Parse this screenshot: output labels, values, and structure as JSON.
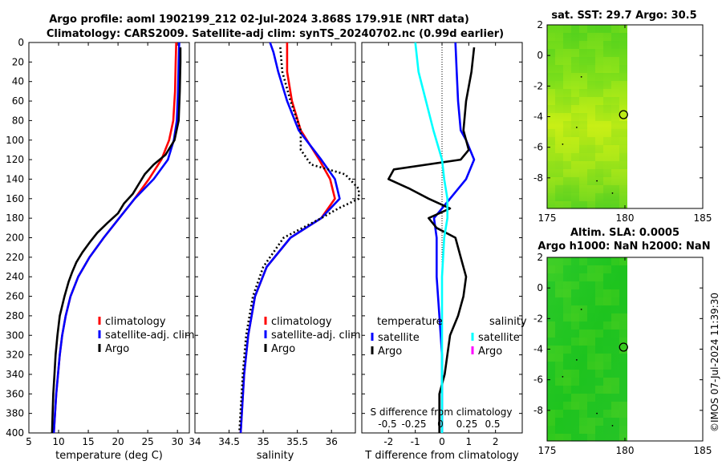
{
  "header": {
    "title_line1": "Argo profile: aoml 1902199_212 02-Jul-2024 3.868S 179.91E (NRT data)",
    "title_line2": "Climatology: CARS2009. Satellite-adj clim: synTS_20240702.nc (0.99d earlier)",
    "sst_title": "sat. SST: 29.7 Argo: 30.5",
    "sla_title1": "Altim. SLA: 0.0005",
    "sla_title2": "Argo h1000: NaN h2000: NaN",
    "footer": "©IMOS 07-Jul-2024 11:39:30"
  },
  "colors": {
    "climatology": "#ff0000",
    "satellite": "#0000ff",
    "argo": "#000000",
    "sal_satellite": "#00ffff",
    "sal_argo": "#ff00ff"
  },
  "chart_data": [
    {
      "type": "line",
      "panel": "temperature",
      "xlabel": "temperature (deg C)",
      "ylim": [
        400,
        0
      ],
      "xlim": [
        5,
        32
      ],
      "xticks": [
        "5",
        "10",
        "15",
        "20",
        "25",
        "30"
      ],
      "xtick_values": [
        5,
        10,
        15,
        20,
        25,
        30
      ],
      "yticks": [
        "0",
        "20",
        "40",
        "60",
        "80",
        "100",
        "120",
        "140",
        "160",
        "180",
        "200",
        "220",
        "240",
        "260",
        "280",
        "300",
        "320",
        "340",
        "360",
        "380",
        "400"
      ],
      "ytick_values": [
        0,
        20,
        40,
        60,
        80,
        100,
        120,
        140,
        160,
        180,
        200,
        220,
        240,
        260,
        280,
        300,
        320,
        340,
        360,
        380,
        400
      ],
      "legend": [
        "climatology",
        "satellite-adj. clim",
        "Argo"
      ],
      "series": [
        {
          "name": "climatology",
          "depth": [
            0,
            20,
            50,
            80,
            100,
            120,
            140,
            160,
            180,
            200,
            220,
            240,
            260,
            280,
            300,
            320,
            340,
            360,
            380,
            400
          ],
          "values": [
            29.8,
            29.7,
            29.6,
            29.3,
            28.6,
            27.3,
            25.2,
            22.8,
            20.2,
            17.6,
            15.2,
            13.3,
            12.0,
            11.2,
            10.6,
            10.2,
            9.9,
            9.6,
            9.4,
            9.2
          ]
        },
        {
          "name": "satellite-adj. clim",
          "depth": [
            0,
            20,
            50,
            80,
            100,
            120,
            140,
            160,
            180,
            200,
            220,
            240,
            260,
            280,
            300,
            320,
            340,
            360,
            380,
            400
          ],
          "values": [
            30.3,
            30.2,
            30.1,
            29.9,
            29.4,
            28.4,
            26.0,
            22.8,
            20.2,
            17.6,
            15.2,
            13.3,
            12.0,
            11.2,
            10.6,
            10.2,
            9.9,
            9.6,
            9.4,
            9.2
          ]
        },
        {
          "name": "Argo",
          "depth": [
            5,
            20,
            50,
            80,
            100,
            115,
            125,
            135,
            145,
            155,
            165,
            175,
            185,
            195,
            205,
            215,
            225,
            235,
            245,
            260,
            280,
            300,
            320,
            340,
            360,
            380,
            400
          ],
          "values": [
            30.5,
            30.5,
            30.4,
            30.2,
            29.5,
            28.0,
            26.0,
            24.5,
            23.5,
            22.5,
            21.0,
            20.0,
            18.2,
            16.5,
            15.2,
            14.0,
            13.0,
            12.3,
            11.7,
            11.0,
            10.2,
            9.8,
            9.5,
            9.3,
            9.1,
            9.0,
            8.9
          ]
        }
      ]
    },
    {
      "type": "line",
      "panel": "salinity",
      "xlabel": "salinity",
      "ylim": [
        400,
        0
      ],
      "xlim": [
        34,
        36.35
      ],
      "xticks": [
        "34",
        "34.5",
        "35",
        "35.5",
        "36"
      ],
      "xtick_values": [
        34,
        34.5,
        35,
        35.5,
        36
      ],
      "legend": [
        "climatology",
        "satellite-adj. clim",
        "Argo"
      ],
      "series": [
        {
          "name": "climatology",
          "depth": [
            0,
            30,
            60,
            90,
            120,
            140,
            160,
            180,
            200,
            230,
            260,
            300,
            340,
            400
          ],
          "values": [
            35.35,
            35.35,
            35.42,
            35.55,
            35.82,
            35.98,
            36.05,
            35.85,
            35.4,
            35.05,
            34.88,
            34.78,
            34.72,
            34.67
          ]
        },
        {
          "name": "satellite-adj. clim",
          "depth": [
            0,
            10,
            30,
            60,
            90,
            120,
            140,
            160,
            180,
            200,
            230,
            260,
            300,
            340,
            400
          ],
          "values": [
            35.1,
            35.15,
            35.22,
            35.35,
            35.52,
            35.85,
            36.05,
            36.12,
            35.85,
            35.4,
            35.05,
            34.88,
            34.78,
            34.72,
            34.67
          ]
        },
        {
          "name": "Argo",
          "depth": [
            5,
            30,
            60,
            90,
            110,
            125,
            135,
            150,
            160,
            170,
            180,
            200,
            230,
            260,
            300,
            340,
            400
          ],
          "values": [
            35.25,
            35.28,
            35.4,
            35.55,
            35.55,
            35.7,
            36.2,
            36.4,
            36.4,
            36.1,
            35.85,
            35.3,
            35.0,
            34.85,
            34.75,
            34.7,
            34.65
          ]
        }
      ]
    },
    {
      "type": "line",
      "panel": "difference",
      "xlabel": "T difference from climatology",
      "top_label": "S difference from climatology",
      "ylim": [
        400,
        0
      ],
      "xlim": [
        -3,
        3
      ],
      "xticks": [
        "-2",
        "-1",
        "0",
        "1",
        "2"
      ],
      "xtick_values": [
        -2,
        -1,
        0,
        1,
        2
      ],
      "s_ticks": [
        "-0.5",
        "-0.25",
        "0",
        "0.25",
        "0.5"
      ],
      "legend_left_title": "temperature",
      "legend_right_title": "salinity",
      "legend_left": [
        "satellite",
        "Argo"
      ],
      "legend_right": [
        "satellite",
        "Argo"
      ],
      "series": [
        {
          "name": "T satellite",
          "depth": [
            0,
            30,
            60,
            90,
            100,
            120,
            140,
            160,
            180,
            200,
            240,
            280,
            320,
            400
          ],
          "values": [
            0.5,
            0.55,
            0.6,
            0.7,
            0.9,
            1.2,
            0.9,
            0.3,
            -0.3,
            -0.2,
            -0.2,
            -0.1,
            0,
            0
          ]
        },
        {
          "name": "T Argo",
          "depth": [
            5,
            30,
            60,
            90,
            110,
            120,
            130,
            140,
            150,
            160,
            170,
            180,
            190,
            200,
            220,
            240,
            260,
            280,
            300,
            340,
            360,
            400
          ],
          "values": [
            1.2,
            1.1,
            0.9,
            0.8,
            1.0,
            0.7,
            -1.8,
            -2.0,
            -1.2,
            -0.5,
            0.3,
            -0.5,
            -0.2,
            0.5,
            0.7,
            0.9,
            0.8,
            0.6,
            0.3,
            0.1,
            -0.1,
            -0.1
          ]
        },
        {
          "name": "S satellite",
          "depth": [
            0,
            30,
            60,
            90,
            120,
            140,
            160,
            180,
            200,
            240,
            280,
            320,
            400
          ],
          "values": [
            -0.25,
            -0.22,
            -0.15,
            -0.08,
            0,
            0.02,
            0.05,
            0.05,
            0.02,
            0,
            0,
            0,
            0
          ]
        }
      ]
    },
    {
      "type": "heatmap",
      "panel": "sst_map",
      "title": "sat. SST: 29.7 Argo: 30.5",
      "xlim": [
        175,
        185
      ],
      "ylim": [
        -10,
        2
      ],
      "xticks": [
        "175",
        "180",
        "185"
      ],
      "xtick_values": [
        175,
        180,
        185
      ],
      "yticks": [
        "2",
        "0",
        "-2",
        "-4",
        "-6",
        "-8"
      ],
      "ytick_values": [
        2,
        0,
        -2,
        -4,
        -6,
        -8
      ],
      "data_extent": {
        "lon": [
          175,
          180
        ],
        "lat": [
          -10,
          2
        ]
      },
      "marker": {
        "lon": 179.91,
        "lat": -3.868
      }
    },
    {
      "type": "heatmap",
      "panel": "sla_map",
      "title": "Altim. SLA: 0.0005",
      "xlim": [
        175,
        185
      ],
      "ylim": [
        -10,
        2
      ],
      "xticks": [
        "175",
        "180",
        "185"
      ],
      "xtick_values": [
        175,
        180,
        185
      ],
      "yticks": [
        "2",
        "0",
        "-2",
        "-4",
        "-6",
        "-8"
      ],
      "ytick_values": [
        2,
        0,
        -2,
        -4,
        -6,
        -8
      ],
      "data_extent": {
        "lon": [
          175,
          180
        ],
        "lat": [
          -10,
          2
        ]
      },
      "marker": {
        "lon": 179.91,
        "lat": -3.868
      }
    }
  ]
}
